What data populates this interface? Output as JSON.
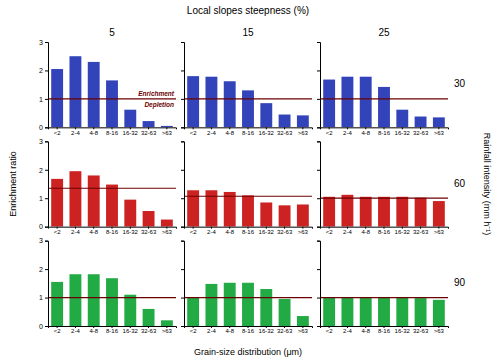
{
  "chart_data": {
    "type": "bar",
    "title": "Local slopes steepness (%)",
    "x_label": "Grain-size distribution (μm)",
    "y_label": "Enrichment ratio",
    "right_label": "Rainfall intensity (mm h⁻¹)",
    "column_titles": [
      "5",
      "15",
      "25"
    ],
    "row_titles": [
      "30",
      "60",
      "90"
    ],
    "categories": [
      "<2",
      "2-4",
      "4-8",
      "8-16",
      "16-32",
      "32-63",
      ">63"
    ],
    "ylim": [
      0,
      3
    ],
    "yticks": [
      0,
      1,
      2,
      3
    ],
    "panels": [
      {
        "color": "#3344bb",
        "values": [
          2.05,
          2.5,
          2.3,
          1.65,
          0.62,
          0.22,
          0.05
        ],
        "hline": {
          "value": 1.0,
          "color": "#6b0000"
        },
        "annotations": [
          {
            "text": "Enrichment",
            "color": "#6b0000"
          },
          {
            "text": "Depletion",
            "color": "#6b0000"
          }
        ]
      },
      {
        "color": "#3344bb",
        "values": [
          1.8,
          1.78,
          1.62,
          1.3,
          0.85,
          0.45,
          0.42
        ],
        "hline": {
          "value": 1.0,
          "color": "#6b0000"
        }
      },
      {
        "color": "#3344bb",
        "values": [
          1.68,
          1.78,
          1.78,
          1.42,
          0.62,
          0.38,
          0.35
        ],
        "hline": {
          "value": 1.0,
          "color": "#6b0000"
        }
      },
      {
        "color": "#cc2222",
        "values": [
          1.68,
          1.95,
          1.8,
          1.48,
          0.95,
          0.55,
          0.25
        ],
        "hline": {
          "value": 1.35,
          "color": "#6b0000"
        }
      },
      {
        "color": "#cc2222",
        "values": [
          1.28,
          1.28,
          1.22,
          1.1,
          0.85,
          0.75,
          0.78
        ],
        "hline": {
          "value": 1.07,
          "color": "#6b0000"
        }
      },
      {
        "color": "#cc2222",
        "values": [
          1.05,
          1.12,
          1.05,
          1.05,
          1.05,
          1.02,
          0.9
        ],
        "hline": {
          "value": 1.0,
          "color": "#6b0000"
        }
      },
      {
        "color": "#22aa44",
        "values": [
          1.55,
          1.82,
          1.82,
          1.68,
          1.1,
          0.6,
          0.2
        ],
        "hline": {
          "value": 1.0,
          "color": "#6b0000"
        }
      },
      {
        "color": "#22aa44",
        "values": [
          1.0,
          1.48,
          1.52,
          1.52,
          1.3,
          0.95,
          0.35
        ],
        "hline": {
          "value": 1.0,
          "color": "#6b0000"
        }
      },
      {
        "color": "#22aa44",
        "values": [
          1.0,
          1.02,
          1.0,
          1.02,
          1.0,
          0.98,
          0.92
        ],
        "hline": {
          "value": 1.0,
          "color": "#6b0000"
        }
      }
    ]
  }
}
